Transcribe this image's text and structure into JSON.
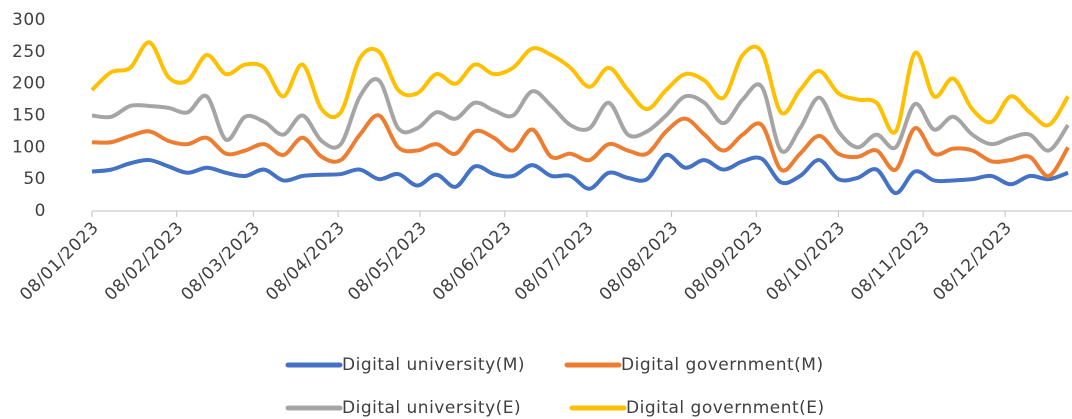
{
  "chart_data": {
    "type": "line",
    "x": [
      "2023-01-08",
      "2023-01-15",
      "2023-01-22",
      "2023-01-29",
      "2023-02-05",
      "2023-02-12",
      "2023-02-19",
      "2023-02-26",
      "2023-03-05",
      "2023-03-12",
      "2023-03-19",
      "2023-03-26",
      "2023-04-02",
      "2023-04-09",
      "2023-04-16",
      "2023-04-23",
      "2023-04-30",
      "2023-05-07",
      "2023-05-14",
      "2023-05-21",
      "2023-05-28",
      "2023-06-04",
      "2023-06-11",
      "2023-06-18",
      "2023-06-25",
      "2023-07-02",
      "2023-07-09",
      "2023-07-16",
      "2023-07-23",
      "2023-07-30",
      "2023-08-06",
      "2023-08-13",
      "2023-08-20",
      "2023-08-27",
      "2023-09-03",
      "2023-09-10",
      "2023-09-17",
      "2023-09-24",
      "2023-10-01",
      "2023-10-08",
      "2023-10-15",
      "2023-10-22",
      "2023-10-29",
      "2023-11-05",
      "2023-11-12",
      "2023-11-19",
      "2023-11-26",
      "2023-12-03",
      "2023-12-10",
      "2023-12-17",
      "2023-12-24",
      "2023-12-31"
    ],
    "series": [
      {
        "name": "Digital university(M)",
        "color": "#4472c4",
        "values": [
          62,
          65,
          75,
          80,
          70,
          60,
          68,
          60,
          55,
          65,
          48,
          55,
          57,
          58,
          65,
          50,
          58,
          40,
          57,
          38,
          70,
          58,
          55,
          72,
          55,
          55,
          35,
          60,
          52,
          50,
          88,
          68,
          80,
          65,
          78,
          82,
          45,
          55,
          80,
          50,
          52,
          65,
          28,
          62,
          48,
          48,
          50,
          55,
          42,
          55,
          50,
          60
        ]
      },
      {
        "name": "Digital government(M)",
        "color": "#ed7d31",
        "values": [
          108,
          108,
          118,
          125,
          110,
          105,
          115,
          90,
          95,
          105,
          88,
          115,
          85,
          80,
          120,
          150,
          100,
          95,
          105,
          90,
          125,
          115,
          95,
          128,
          85,
          90,
          80,
          105,
          95,
          90,
          125,
          145,
          120,
          95,
          120,
          135,
          65,
          90,
          118,
          90,
          85,
          95,
          65,
          130,
          90,
          98,
          95,
          78,
          80,
          85,
          55,
          100
        ]
      },
      {
        "name": "Digital university(E)",
        "color": "#a5a5a5",
        "values": [
          150,
          148,
          165,
          165,
          162,
          155,
          180,
          112,
          148,
          140,
          120,
          150,
          110,
          105,
          180,
          205,
          130,
          130,
          155,
          145,
          170,
          158,
          150,
          188,
          165,
          135,
          130,
          170,
          120,
          125,
          150,
          180,
          170,
          138,
          175,
          195,
          95,
          130,
          178,
          125,
          100,
          120,
          100,
          168,
          128,
          148,
          120,
          105,
          115,
          120,
          95,
          135
        ]
      },
      {
        "name": "Digital government(E)",
        "color": "#ffc000",
        "values": [
          190,
          218,
          225,
          265,
          210,
          205,
          245,
          215,
          230,
          225,
          180,
          230,
          160,
          155,
          240,
          250,
          190,
          185,
          215,
          200,
          230,
          215,
          225,
          255,
          245,
          225,
          195,
          225,
          190,
          160,
          190,
          215,
          205,
          178,
          245,
          250,
          155,
          190,
          220,
          185,
          175,
          170,
          125,
          248,
          180,
          208,
          160,
          140,
          180,
          155,
          135,
          180
        ]
      }
    ],
    "xlim": [
      "2023-01-08",
      "2023-12-31"
    ],
    "xticks": [
      {
        "value": "2023-01-08",
        "label": "08/01/2023"
      },
      {
        "value": "2023-02-08",
        "label": "08/02/2023"
      },
      {
        "value": "2023-03-08",
        "label": "08/03/2023"
      },
      {
        "value": "2023-04-08",
        "label": "08/04/2023"
      },
      {
        "value": "2023-05-08",
        "label": "08/05/2023"
      },
      {
        "value": "2023-06-08",
        "label": "08/06/2023"
      },
      {
        "value": "2023-07-08",
        "label": "08/07/2023"
      },
      {
        "value": "2023-08-08",
        "label": "08/08/2023"
      },
      {
        "value": "2023-09-08",
        "label": "08/09/2023"
      },
      {
        "value": "2023-10-08",
        "label": "08/10/2023"
      },
      {
        "value": "2023-11-08",
        "label": "08/11/2023"
      },
      {
        "value": "2023-12-08",
        "label": "08/12/2023"
      }
    ],
    "ylim": [
      0,
      300
    ],
    "yticks": [
      0,
      50,
      100,
      150,
      200,
      250,
      300
    ],
    "grid": false,
    "legend": "bottom"
  }
}
